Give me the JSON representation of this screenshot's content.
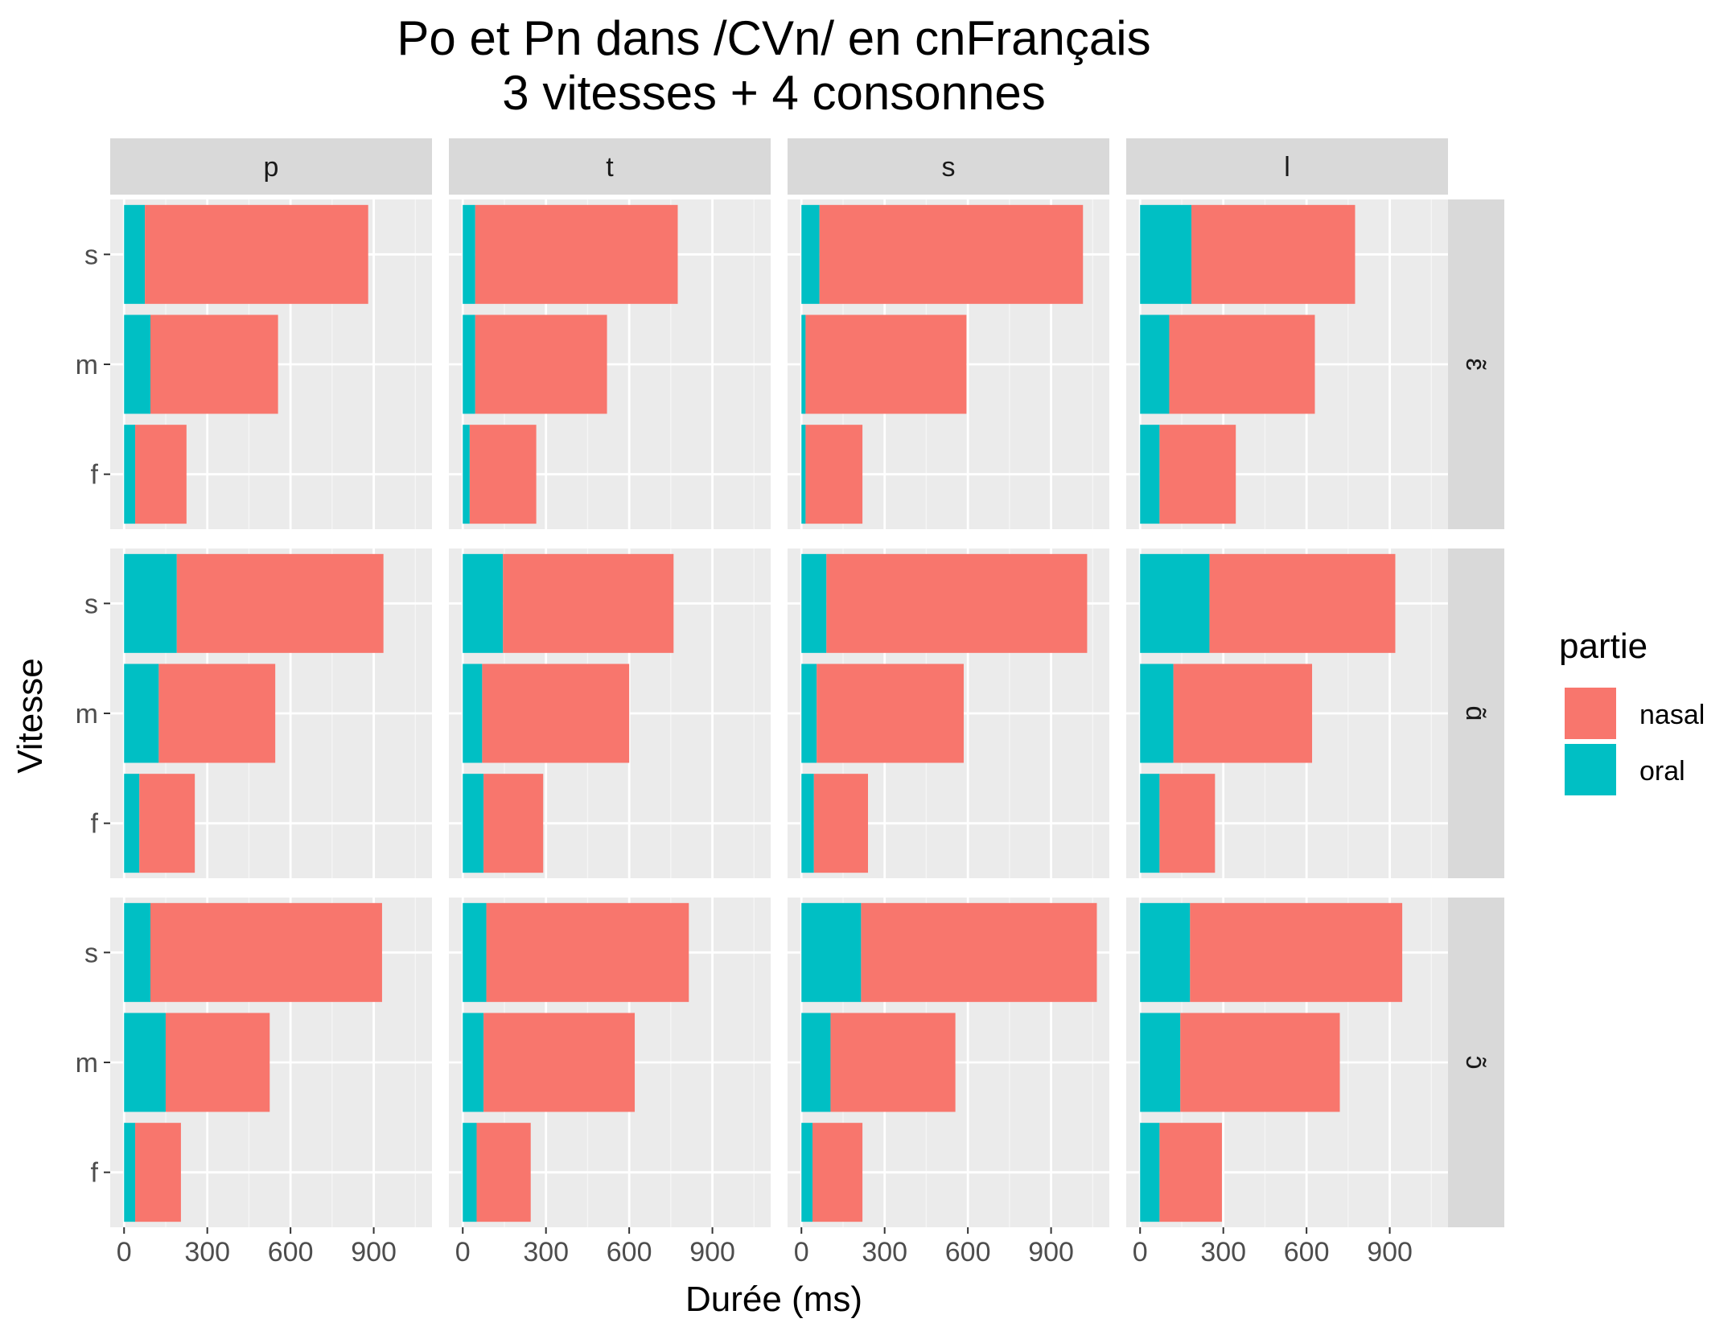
{
  "chart_data": {
    "type": "bar",
    "orientation": "horizontal",
    "stacked": true,
    "title": "Po et Pn dans /CVn/ en cnFrançais",
    "subtitle": "3 vitesses + 4 consonnes",
    "xlabel": "Durée (ms)",
    "ylabel": "Vitesse",
    "xlim": [
      -50,
      1110
    ],
    "xticks": [
      "0",
      "300",
      "600",
      "900"
    ],
    "xtick_values": [
      0,
      300,
      600,
      900
    ],
    "categories": [
      "s",
      "m",
      "f"
    ],
    "columns": [
      "p",
      "t",
      "s",
      "l"
    ],
    "rows": [
      "ɛ̃",
      "ɑ̃",
      "ɔ̃"
    ],
    "legend": {
      "title": "partie",
      "position": "right",
      "entries": [
        {
          "name": "nasal",
          "color": "#F8766D"
        },
        {
          "name": "oral",
          "color": "#00BFC4"
        }
      ]
    },
    "panels": [
      {
        "row": "ɛ̃",
        "col": "p",
        "oral": [
          75,
          95,
          40
        ],
        "total": [
          880,
          555,
          225
        ]
      },
      {
        "row": "ɛ̃",
        "col": "t",
        "oral": [
          45,
          45,
          25
        ],
        "total": [
          775,
          520,
          265
        ]
      },
      {
        "row": "ɛ̃",
        "col": "s",
        "oral": [
          65,
          15,
          15
        ],
        "total": [
          1015,
          595,
          220
        ]
      },
      {
        "row": "ɛ̃",
        "col": "l",
        "oral": [
          185,
          105,
          70
        ],
        "total": [
          775,
          630,
          345
        ]
      },
      {
        "row": "ɑ̃",
        "col": "p",
        "oral": [
          190,
          125,
          55
        ],
        "total": [
          935,
          545,
          255
        ]
      },
      {
        "row": "ɑ̃",
        "col": "t",
        "oral": [
          145,
          70,
          75
        ],
        "total": [
          760,
          600,
          290
        ]
      },
      {
        "row": "ɑ̃",
        "col": "s",
        "oral": [
          90,
          55,
          45
        ],
        "total": [
          1030,
          585,
          240
        ]
      },
      {
        "row": "ɑ̃",
        "col": "l",
        "oral": [
          250,
          120,
          70
        ],
        "total": [
          920,
          620,
          270
        ]
      },
      {
        "row": "ɔ̃",
        "col": "p",
        "oral": [
          95,
          150,
          40
        ],
        "total": [
          930,
          525,
          205
        ]
      },
      {
        "row": "ɔ̃",
        "col": "t",
        "oral": [
          85,
          75,
          50
        ],
        "total": [
          815,
          620,
          245
        ]
      },
      {
        "row": "ɔ̃",
        "col": "s",
        "oral": [
          215,
          105,
          40
        ],
        "total": [
          1065,
          555,
          220
        ]
      },
      {
        "row": "ɔ̃",
        "col": "l",
        "oral": [
          180,
          145,
          70
        ],
        "total": [
          945,
          720,
          295
        ]
      }
    ],
    "grid": true
  }
}
